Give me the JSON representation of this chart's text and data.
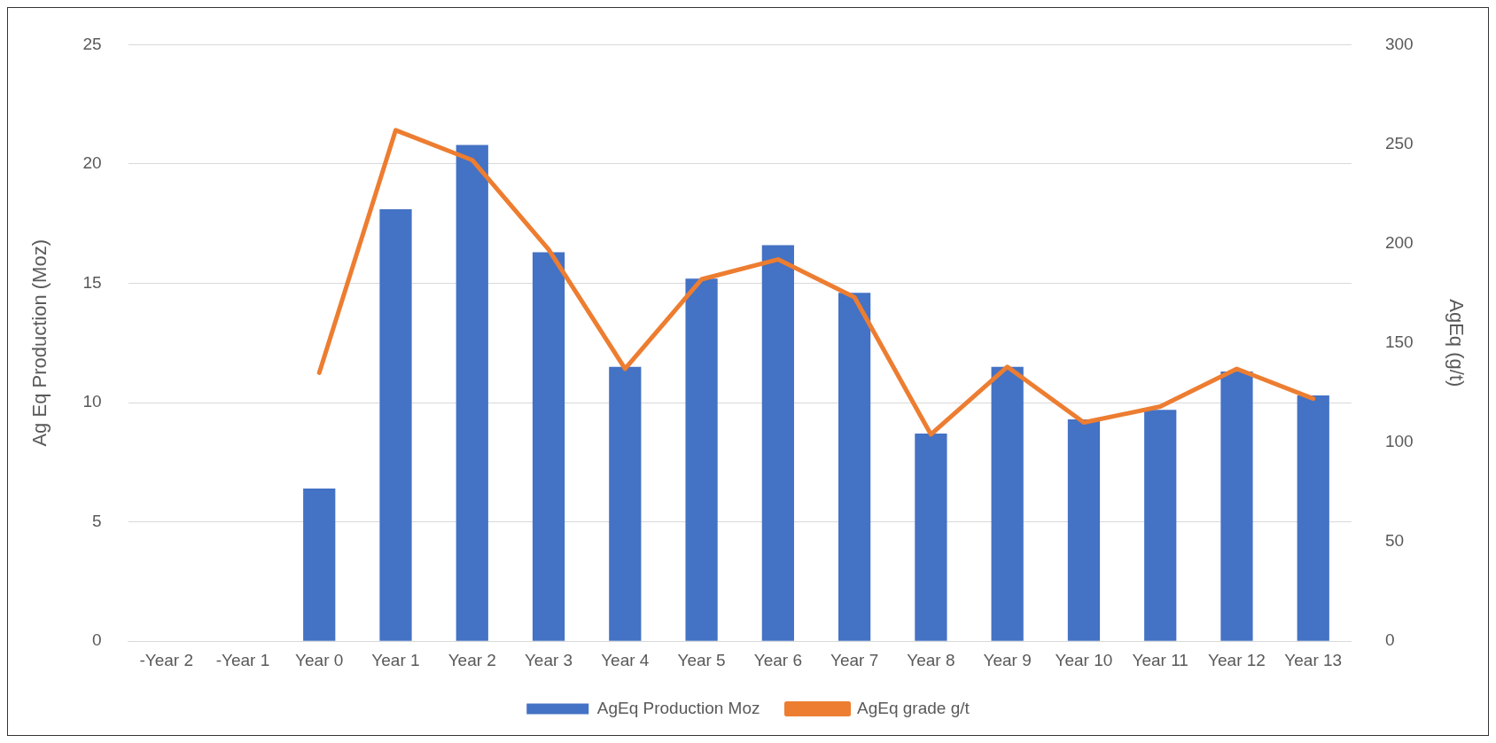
{
  "chart_data": {
    "type": "bar",
    "categories": [
      "-Year 2",
      "-Year 1",
      "Year 0",
      "Year 1",
      "Year 2",
      "Year 3",
      "Year 4",
      "Year 5",
      "Year 6",
      "Year 7",
      "Year 8",
      "Year 9",
      "Year 10",
      "Year 11",
      "Year 12",
      "Year 13"
    ],
    "ylabel": "Ag Eq Production (Moz)",
    "y2label": "AgEq (g/t)",
    "series": [
      {
        "name": "AgEq Production Moz",
        "color": "#4472c4",
        "values": [
          null,
          null,
          6.4,
          18.1,
          20.8,
          16.3,
          11.5,
          15.2,
          16.6,
          14.6,
          8.7,
          11.5,
          9.3,
          9.7,
          11.3,
          10.3
        ]
      },
      {
        "name": "AgEq grade g/t",
        "type": "line",
        "axis": "y2",
        "color": "#ed7d31",
        "values": [
          null,
          null,
          135,
          257,
          242,
          197,
          137,
          182,
          192,
          173,
          104,
          138,
          110,
          118,
          137,
          122
        ]
      }
    ],
    "ylim": [
      0,
      25
    ],
    "yticks": [
      0,
      5,
      10,
      15,
      20,
      25
    ],
    "y2lim": [
      0,
      300
    ],
    "y2ticks": [
      0,
      50,
      100,
      150,
      200,
      250,
      300
    ],
    "grid": "y",
    "legend": "bottom",
    "marker": "none",
    "line_style": "solid"
  }
}
